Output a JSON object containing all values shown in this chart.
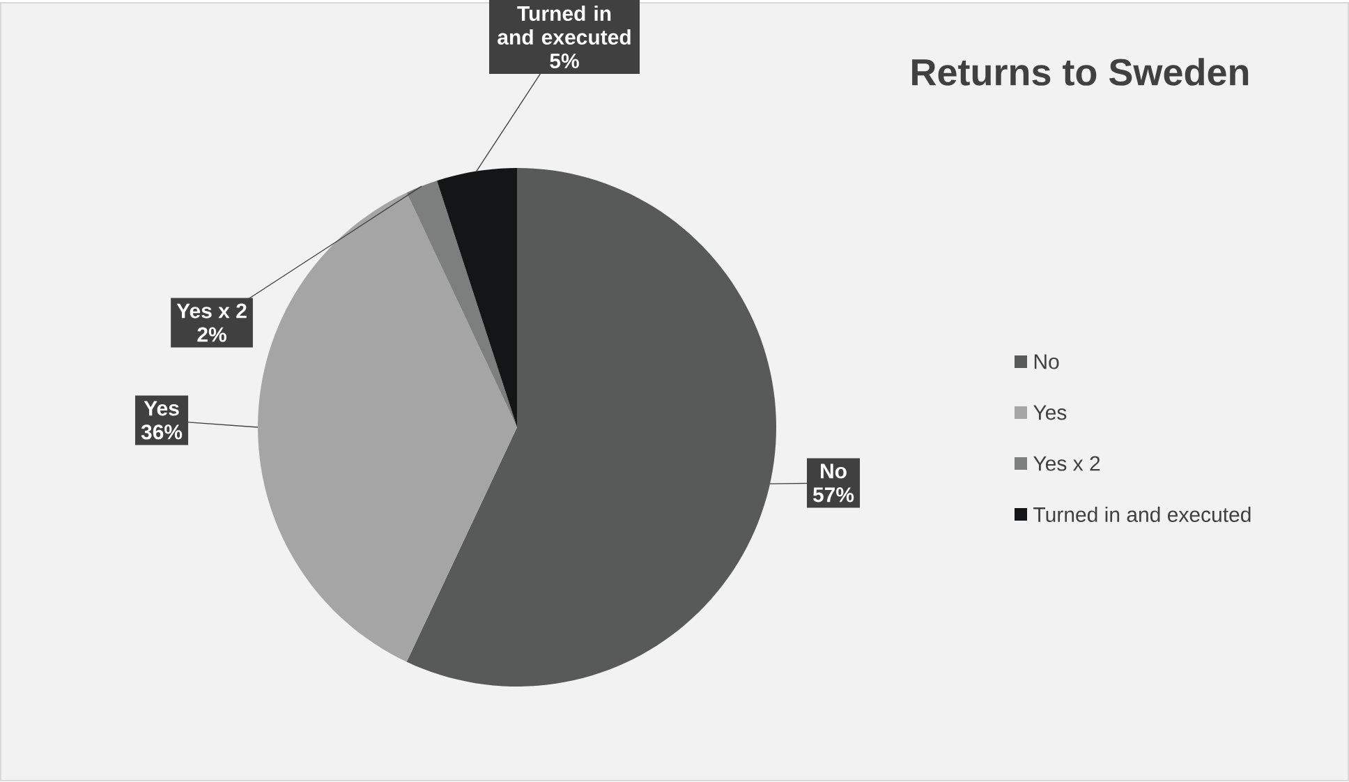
{
  "chart_data": {
    "type": "pie",
    "title": "Returns to Sweden",
    "categories": [
      "No",
      "Yes",
      "Yes x 2",
      "Turned in and executed"
    ],
    "values": [
      57,
      36,
      2,
      5
    ],
    "value_labels": [
      "57%",
      "36%",
      "2%",
      "5%"
    ],
    "colors": [
      "#585a5a",
      "#a5a5a5",
      "#7d7e7e",
      "#131517"
    ],
    "legend": "right"
  }
}
